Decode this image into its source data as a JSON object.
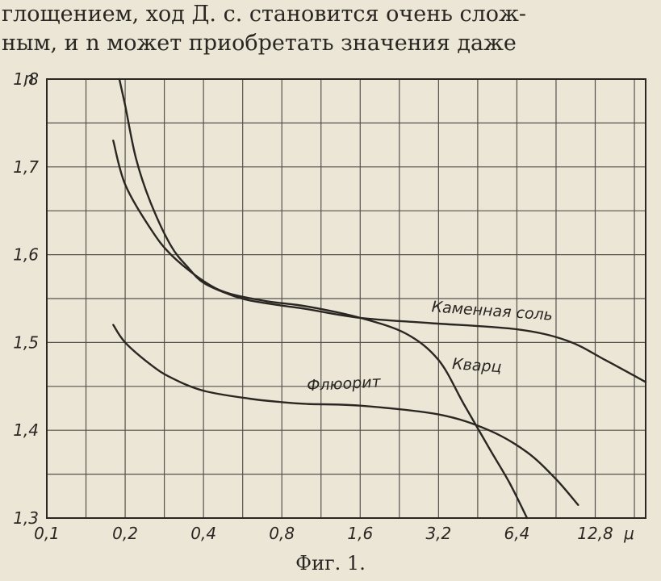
{
  "text": {
    "line1": "глощением, ход Д. с. становится очень слож-",
    "line2": "ным, и n может приобретать значения даже"
  },
  "caption": "Фиг. 1.",
  "chart_data": {
    "type": "line",
    "title": "",
    "xlabel": "μ",
    "ylabel": "n",
    "x_scale": "log",
    "xlim": [
      0.1,
      20
    ],
    "ylim": [
      1.3,
      1.8
    ],
    "x_ticks": [
      0.1,
      0.2,
      0.4,
      0.8,
      1.6,
      3.2,
      6.4,
      12.8
    ],
    "x_tick_labels": [
      "0,1",
      "0,2",
      "0,4",
      "0,8",
      "1,6",
      "3,2",
      "6,4",
      "12,8"
    ],
    "y_ticks": [
      1.3,
      1.4,
      1.5,
      1.6,
      1.7,
      1.8
    ],
    "y_tick_labels": [
      "1,3",
      "1,4",
      "1,5",
      "1,6",
      "1,7",
      "1,8"
    ],
    "grid": true,
    "grid_minor_y": 0.05,
    "grid_minor_x_divisions": 2,
    "series": [
      {
        "name": "Каменная соль",
        "x": [
          0.19,
          0.2,
          0.22,
          0.25,
          0.3,
          0.35,
          0.4,
          0.5,
          0.6,
          0.8,
          1.0,
          1.6,
          3.0,
          6.4,
          10.0,
          14.0,
          20.0
        ],
        "y": [
          1.8,
          1.77,
          1.71,
          1.66,
          1.61,
          1.585,
          1.568,
          1.555,
          1.548,
          1.542,
          1.538,
          1.528,
          1.522,
          1.515,
          1.502,
          1.48,
          1.455
        ]
      },
      {
        "name": "Кварц",
        "x": [
          0.18,
          0.2,
          0.25,
          0.3,
          0.4,
          0.5,
          0.7,
          1.0,
          1.6,
          2.4,
          3.2,
          4.0,
          5.0,
          6.0,
          7.0
        ],
        "y": [
          1.73,
          1.68,
          1.63,
          1.6,
          1.57,
          1.556,
          1.547,
          1.541,
          1.528,
          1.51,
          1.48,
          1.43,
          1.38,
          1.34,
          1.3
        ]
      },
      {
        "name": "Флюорит",
        "x": [
          0.18,
          0.2,
          0.25,
          0.3,
          0.4,
          0.6,
          0.8,
          1.0,
          1.6,
          3.2,
          5.0,
          7.0,
          9.0,
          11.0
        ],
        "y": [
          1.52,
          1.5,
          1.475,
          1.46,
          1.445,
          1.436,
          1.432,
          1.43,
          1.428,
          1.418,
          1.4,
          1.375,
          1.345,
          1.315
        ]
      }
    ]
  }
}
